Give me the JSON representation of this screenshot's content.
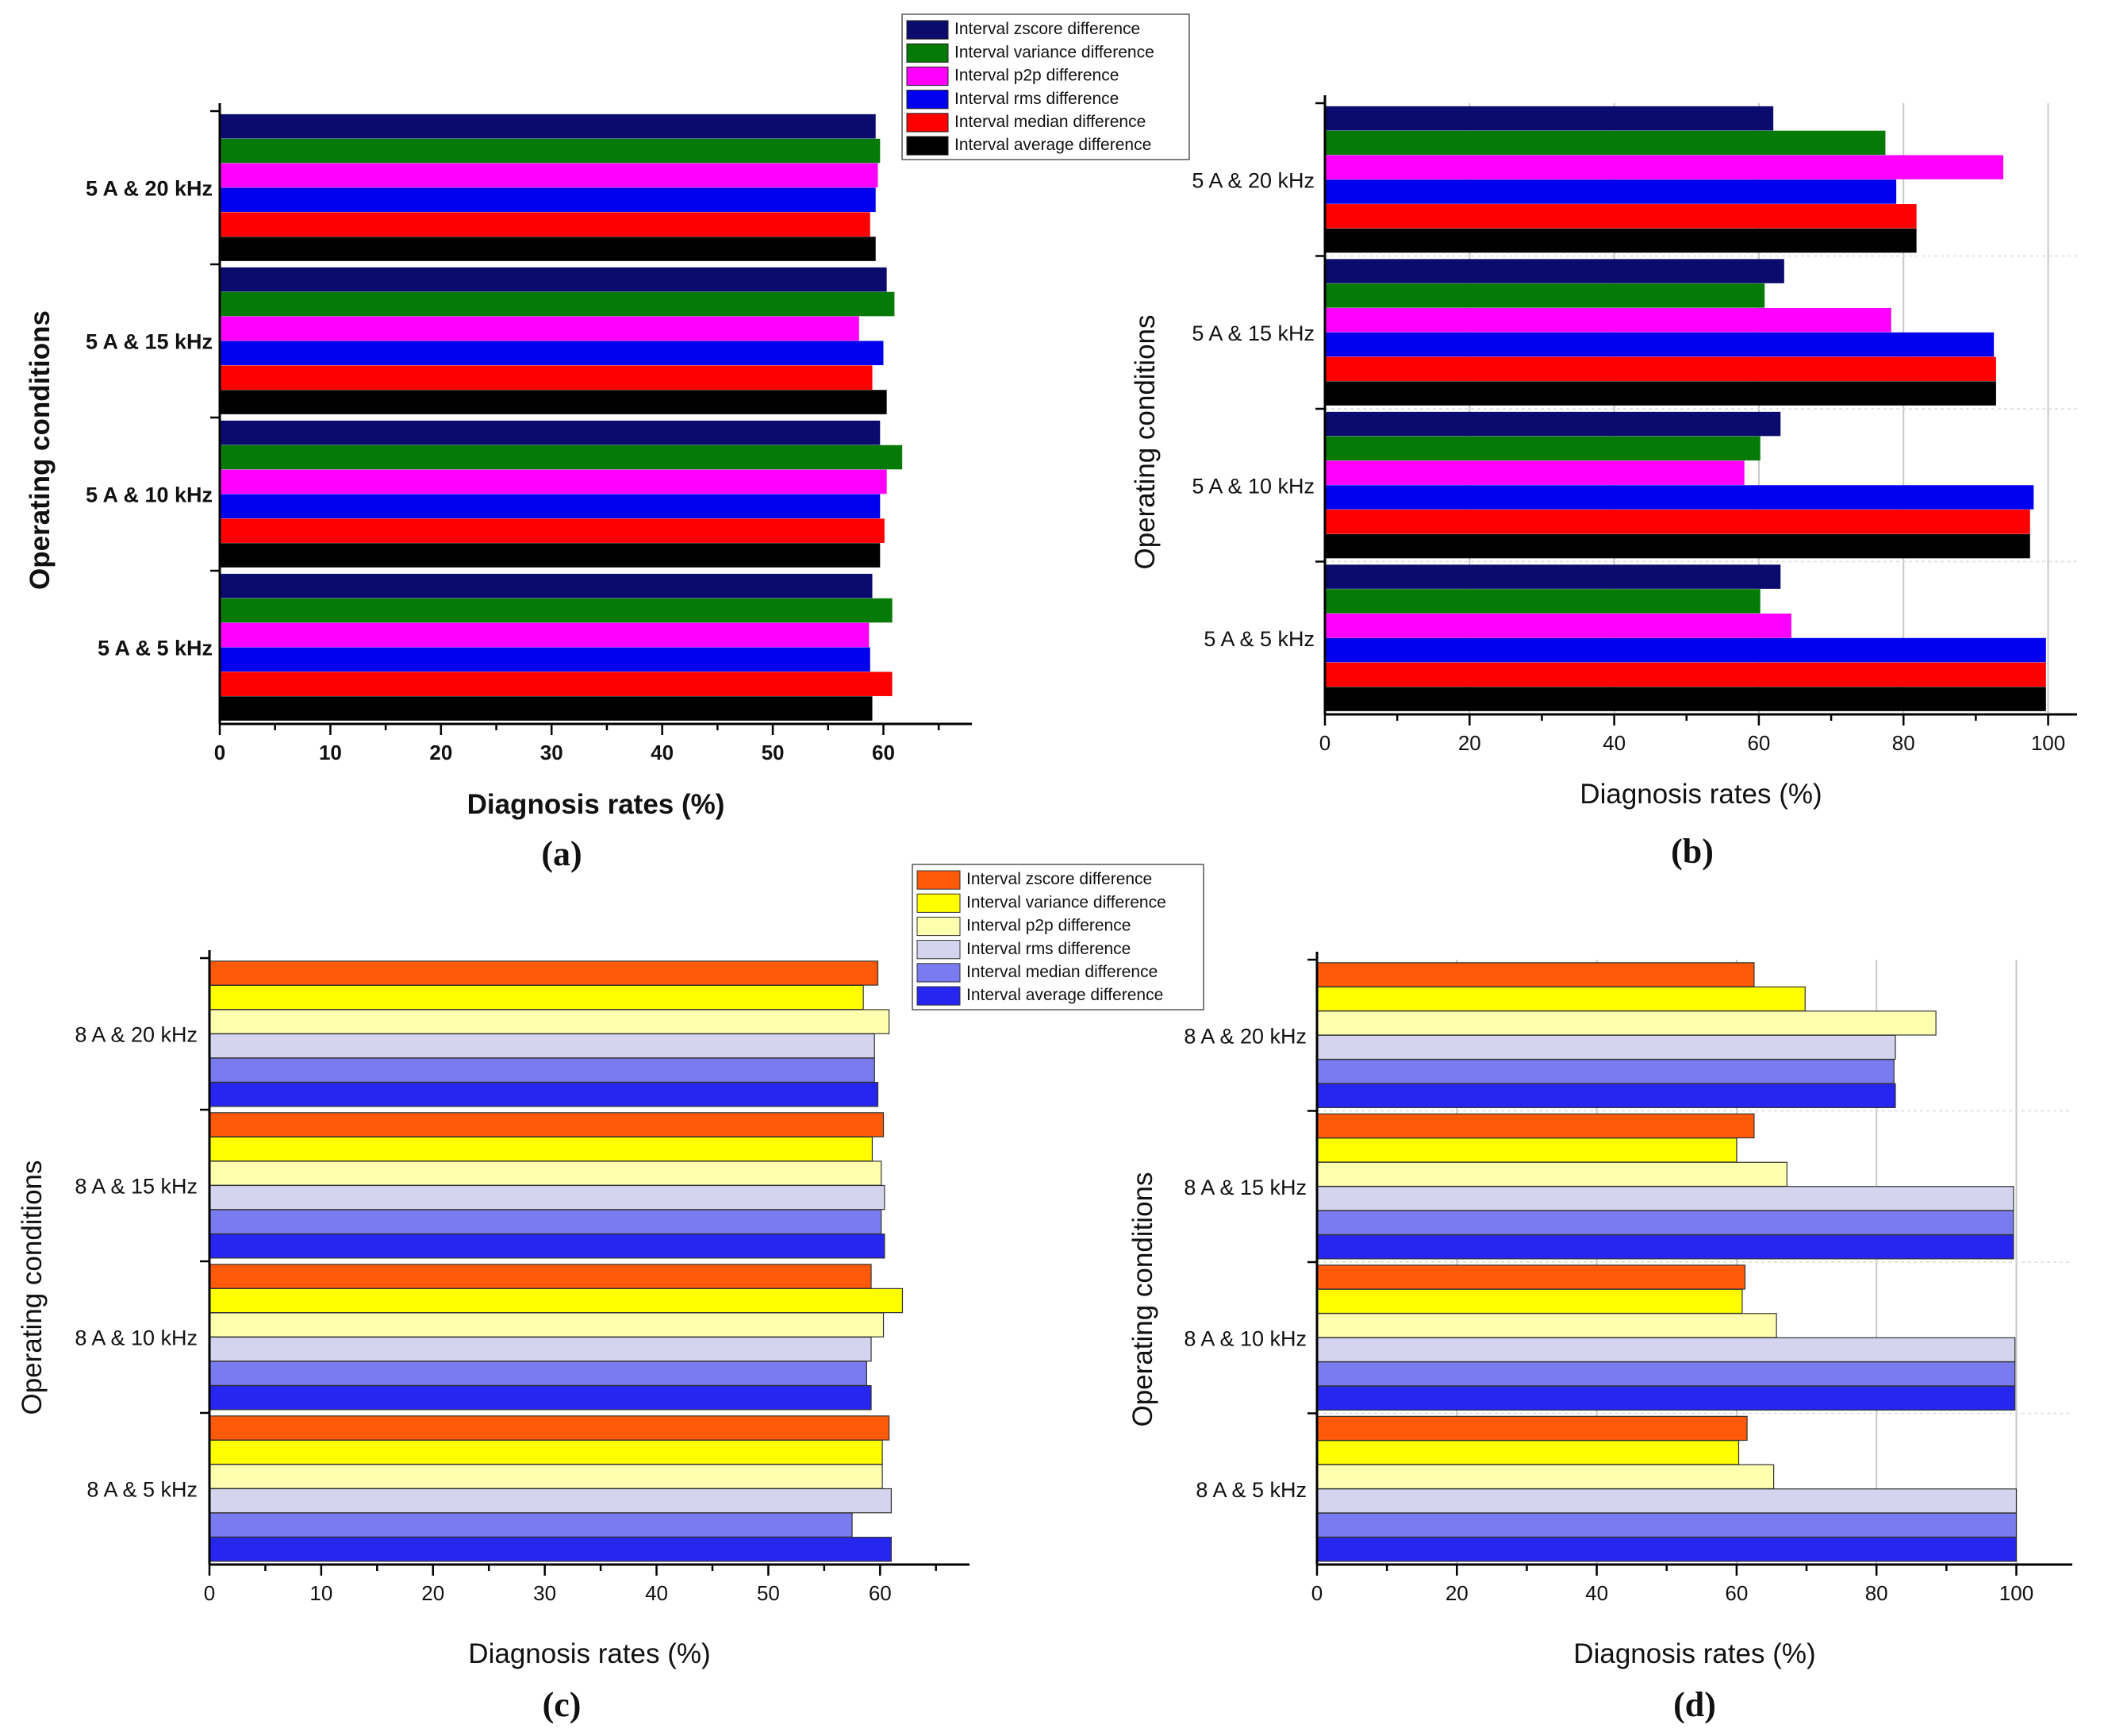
{
  "chart_data": [
    {
      "type": "bar",
      "orientation": "horizontal",
      "panel_label": "(a)",
      "xlabel": "Diagnosis rates (%)",
      "ylabel": "Operating conditions",
      "xlim": [
        0,
        68
      ],
      "xticks": [
        "0",
        "10",
        "20",
        "30",
        "40",
        "50",
        "60"
      ],
      "grid": false,
      "bold_labels": true,
      "legend_position": "top-right",
      "categories": [
        "5 A & 5 kHz",
        "5 A & 10 kHz",
        "5 A & 15 kHz",
        "5 A & 20 kHz"
      ],
      "series": [
        {
          "name": "Interval zscore difference",
          "color": "#0b0b6e",
          "values": [
            59.0,
            59.7,
            60.3,
            59.3
          ]
        },
        {
          "name": "Interval variance difference",
          "color": "#067a06",
          "values": [
            60.8,
            61.7,
            61.0,
            59.7
          ]
        },
        {
          "name": "Interval p2p difference",
          "color": "#ff00ff",
          "values": [
            58.7,
            60.3,
            57.8,
            59.5
          ]
        },
        {
          "name": "Interval rms difference",
          "color": "#0000ee",
          "values": [
            58.8,
            59.7,
            60.0,
            59.3
          ]
        },
        {
          "name": "Interval median difference",
          "color": "#ff0000",
          "values": [
            60.8,
            60.1,
            59.0,
            58.8
          ]
        },
        {
          "name": "Interval average difference",
          "color": "#000000",
          "values": [
            59.0,
            59.7,
            60.3,
            59.3
          ]
        }
      ]
    },
    {
      "type": "bar",
      "orientation": "horizontal",
      "panel_label": "(b)",
      "xlabel": "Diagnosis rates (%)",
      "ylabel": "Operating conditions",
      "xlim": [
        0,
        104
      ],
      "xticks": [
        "0",
        "20",
        "40",
        "60",
        "80",
        "100"
      ],
      "grid": true,
      "bold_labels": false,
      "categories": [
        "5 A & 5 kHz",
        "5 A & 10 kHz",
        "5 A & 15 kHz",
        "5 A & 20 kHz"
      ],
      "series": [
        {
          "name": "Interval zscore difference",
          "color": "#0b0b6e",
          "values": [
            63.0,
            63.0,
            63.5,
            62.0
          ]
        },
        {
          "name": "Interval variance difference",
          "color": "#067a06",
          "values": [
            60.2,
            60.2,
            60.8,
            77.5
          ]
        },
        {
          "name": "Interval p2p difference",
          "color": "#ff00ff",
          "values": [
            64.5,
            58.0,
            78.3,
            93.8
          ]
        },
        {
          "name": "Interval rms difference",
          "color": "#0000ee",
          "values": [
            99.7,
            98.0,
            92.5,
            79.0
          ]
        },
        {
          "name": "Interval median difference",
          "color": "#ff0000",
          "values": [
            99.7,
            97.5,
            92.8,
            81.8
          ]
        },
        {
          "name": "Interval average difference",
          "color": "#000000",
          "values": [
            99.7,
            97.5,
            92.8,
            81.8
          ]
        }
      ]
    },
    {
      "type": "bar",
      "orientation": "horizontal",
      "panel_label": "(c)",
      "xlabel": "Diagnosis rates (%)",
      "ylabel": "Operating conditions",
      "xlim": [
        0,
        68
      ],
      "xticks": [
        "0",
        "10",
        "20",
        "30",
        "40",
        "50",
        "60"
      ],
      "grid": false,
      "bold_labels": false,
      "bar_outline": true,
      "legend_position": "top-right",
      "categories": [
        "8 A & 5 kHz",
        "8 A & 10 kHz",
        "8 A & 15 kHz",
        "8 A & 20 kHz"
      ],
      "series": [
        {
          "name": "Interval zscore difference",
          "color": "#ff5a0a",
          "values": [
            60.8,
            59.2,
            60.3,
            59.8
          ]
        },
        {
          "name": "Interval variance difference",
          "color": "#ffff00",
          "values": [
            60.2,
            62.0,
            59.3,
            58.5
          ]
        },
        {
          "name": "Interval p2p difference",
          "color": "#ffffb0",
          "values": [
            60.2,
            60.3,
            60.1,
            60.8
          ]
        },
        {
          "name": "Interval rms difference",
          "color": "#d4d4ef",
          "values": [
            61.0,
            59.2,
            60.4,
            59.5
          ]
        },
        {
          "name": "Interval median difference",
          "color": "#7b7bf0",
          "values": [
            57.5,
            58.8,
            60.1,
            59.5
          ]
        },
        {
          "name": "Interval average difference",
          "color": "#2626ee",
          "values": [
            61.0,
            59.2,
            60.4,
            59.8
          ]
        }
      ]
    },
    {
      "type": "bar",
      "orientation": "horizontal",
      "panel_label": "(d)",
      "xlabel": "Diagnosis rates (%)",
      "ylabel": "Operating conditions",
      "xlim": [
        0,
        108
      ],
      "xticks": [
        "0",
        "20",
        "40",
        "60",
        "80",
        "100"
      ],
      "grid": true,
      "bold_labels": false,
      "bar_outline": true,
      "categories": [
        "8 A & 5 kHz",
        "8 A & 10 kHz",
        "8 A & 15 kHz",
        "8 A & 20 kHz"
      ],
      "series": [
        {
          "name": "Interval zscore difference",
          "color": "#ff5a0a",
          "values": [
            61.5,
            61.2,
            62.5,
            62.5
          ]
        },
        {
          "name": "Interval variance difference",
          "color": "#ffff00",
          "values": [
            60.3,
            60.8,
            60.0,
            69.8
          ]
        },
        {
          "name": "Interval p2p difference",
          "color": "#ffffb0",
          "values": [
            65.3,
            65.7,
            67.2,
            88.5
          ]
        },
        {
          "name": "Interval rms difference",
          "color": "#d4d4ef",
          "values": [
            100.0,
            99.8,
            99.6,
            82.7
          ]
        },
        {
          "name": "Interval median difference",
          "color": "#7b7bf0",
          "values": [
            100.0,
            99.8,
            99.6,
            82.5
          ]
        },
        {
          "name": "Interval average difference",
          "color": "#2626ee",
          "values": [
            100.0,
            99.8,
            99.6,
            82.7
          ]
        }
      ]
    }
  ]
}
